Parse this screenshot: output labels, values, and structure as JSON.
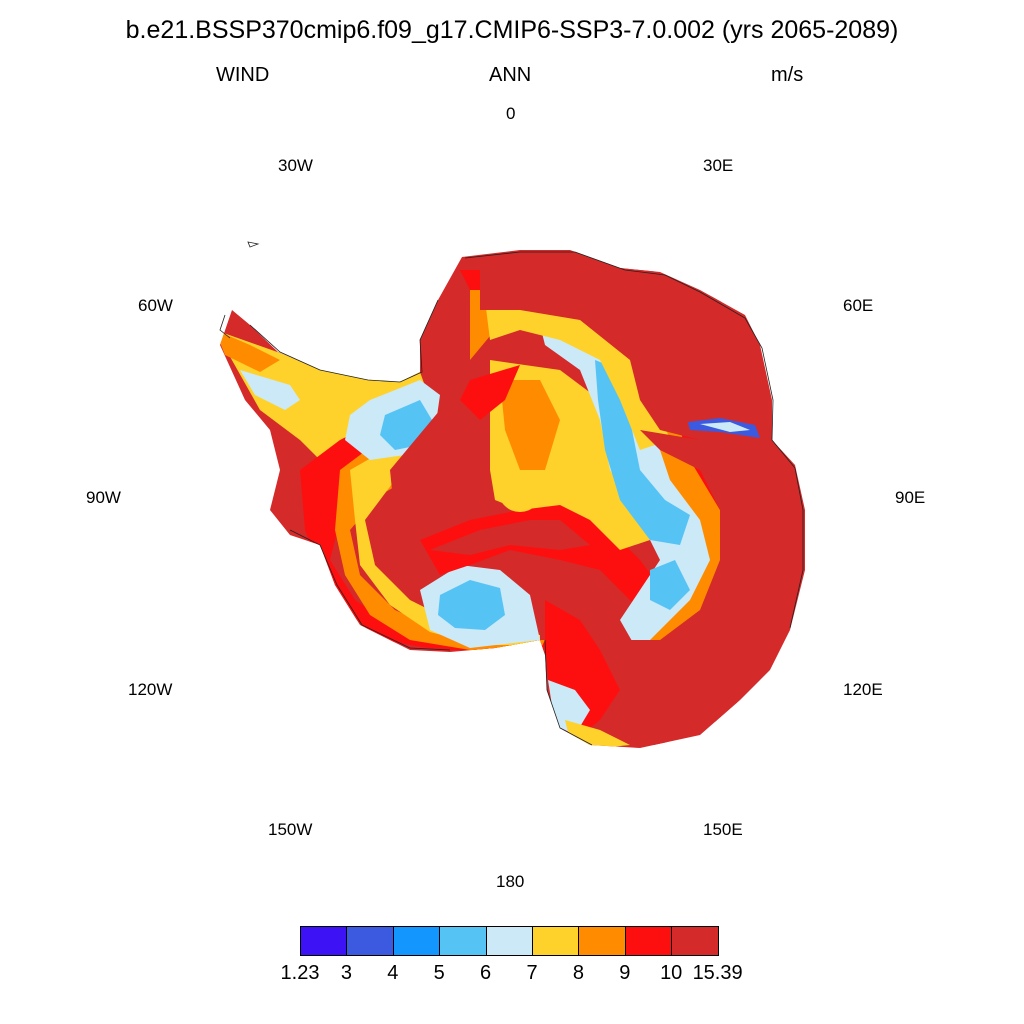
{
  "title": "b.e21.BSSP370cmip6.f09_g17.CMIP6-SSP3-7.0.002 (yrs 2065-2089)",
  "variable": "WIND",
  "season": "ANN",
  "units": "m/s",
  "longitude_labels": {
    "n": "0",
    "n_e": "30E",
    "e60": "60E",
    "e90": "90E",
    "e120": "120E",
    "e150": "150E",
    "s": "180",
    "w150": "150W",
    "w120": "120W",
    "w90": "90W",
    "w60": "60W",
    "w30": "30W"
  },
  "colorbar": {
    "colors": [
      "#3d12f5",
      "#3b5ae0",
      "#1496ff",
      "#56c3f5",
      "#cbe9f7",
      "#fed22b",
      "#ff8c00",
      "#fe0f0f",
      "#d42a2a"
    ],
    "labels": [
      "1.23",
      "3",
      "4",
      "5",
      "6",
      "7",
      "8",
      "9",
      "10",
      "15.39"
    ]
  }
}
